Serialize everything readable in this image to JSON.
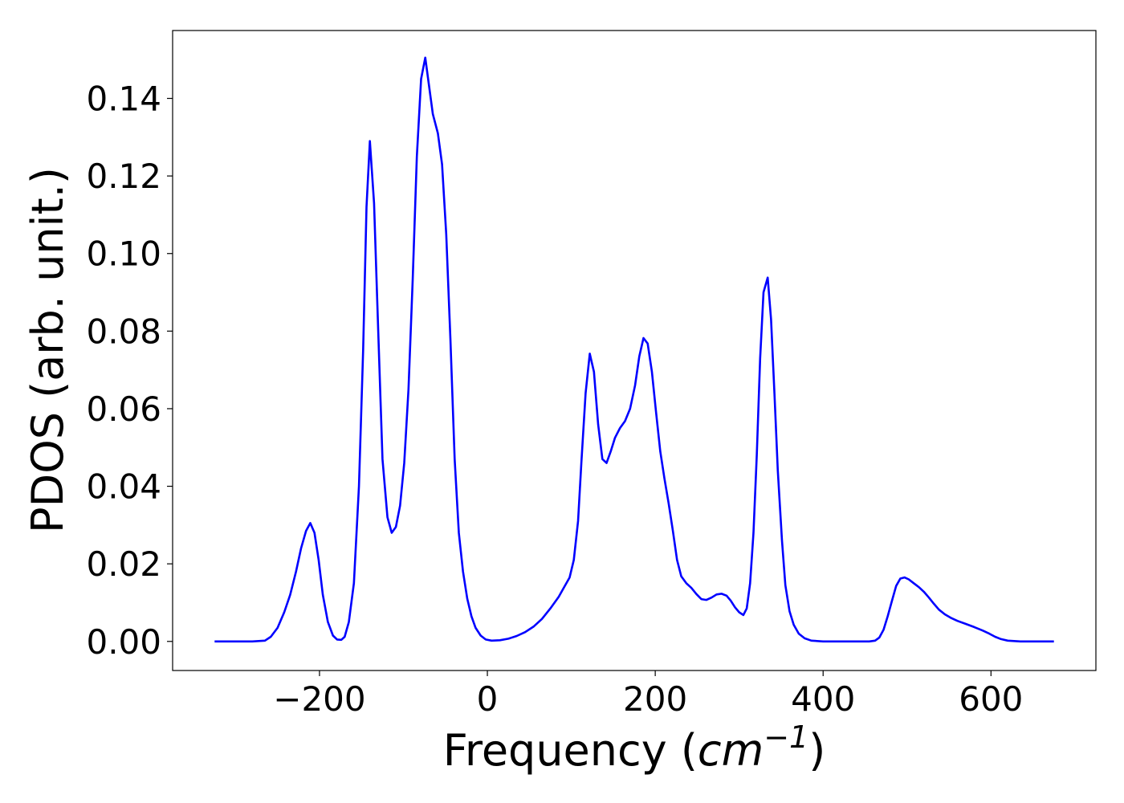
{
  "chart_data": {
    "type": "line",
    "title": "",
    "xlabel": "Frequency",
    "xlabel_unit_open": " (",
    "xlabel_unit": "cm",
    "xlabel_unit_exponent": "−1",
    "xlabel_unit_close": ")",
    "ylabel": "PDOS (arb. unit.)",
    "xlim": [
      -375,
      725
    ],
    "ylim": [
      -0.0075,
      0.1575
    ],
    "xticks": [
      {
        "value": -200,
        "label": "−200"
      },
      {
        "value": 0,
        "label": "0"
      },
      {
        "value": 200,
        "label": "200"
      },
      {
        "value": 400,
        "label": "400"
      },
      {
        "value": 600,
        "label": "600"
      }
    ],
    "yticks": [
      {
        "value": 0.0,
        "label": "0.00"
      },
      {
        "value": 0.02,
        "label": "0.02"
      },
      {
        "value": 0.04,
        "label": "0.04"
      },
      {
        "value": 0.06,
        "label": "0.06"
      },
      {
        "value": 0.08,
        "label": "0.08"
      },
      {
        "value": 0.1,
        "label": "0.10"
      },
      {
        "value": 0.12,
        "label": "0.12"
      },
      {
        "value": 0.14,
        "label": "0.14"
      }
    ],
    "grid": false,
    "legend": "none",
    "series": [
      {
        "color": "#0000ff",
        "points": [
          [
            -325,
            0.0
          ],
          [
            -300,
            0.0
          ],
          [
            -280,
            0.0
          ],
          [
            -265,
            0.0002
          ],
          [
            -258,
            0.0012
          ],
          [
            -250,
            0.0035
          ],
          [
            -242,
            0.0075
          ],
          [
            -235,
            0.012
          ],
          [
            -228,
            0.018
          ],
          [
            -222,
            0.024
          ],
          [
            -216,
            0.0285
          ],
          [
            -211,
            0.0305
          ],
          [
            -206,
            0.028
          ],
          [
            -201,
            0.021
          ],
          [
            -196,
            0.012
          ],
          [
            -190,
            0.005
          ],
          [
            -184,
            0.0015
          ],
          [
            -179,
            0.0005
          ],
          [
            -174,
            0.0004
          ],
          [
            -170,
            0.0012
          ],
          [
            -165,
            0.005
          ],
          [
            -159,
            0.015
          ],
          [
            -153,
            0.04
          ],
          [
            -148,
            0.075
          ],
          [
            -144,
            0.112
          ],
          [
            -140,
            0.129
          ],
          [
            -135,
            0.113
          ],
          [
            -130,
            0.08
          ],
          [
            -125,
            0.047
          ],
          [
            -119,
            0.032
          ],
          [
            -114,
            0.028
          ],
          [
            -109,
            0.0295
          ],
          [
            -104,
            0.035
          ],
          [
            -99,
            0.046
          ],
          [
            -94,
            0.065
          ],
          [
            -89,
            0.093
          ],
          [
            -84,
            0.125
          ],
          [
            -79,
            0.145
          ],
          [
            -74,
            0.1505
          ],
          [
            -70,
            0.144
          ],
          [
            -65,
            0.136
          ],
          [
            -59,
            0.131
          ],
          [
            -54,
            0.123
          ],
          [
            -49,
            0.105
          ],
          [
            -44,
            0.078
          ],
          [
            -39,
            0.047
          ],
          [
            -34,
            0.028
          ],
          [
            -29,
            0.018
          ],
          [
            -24,
            0.011
          ],
          [
            -19,
            0.0065
          ],
          [
            -14,
            0.0035
          ],
          [
            -8,
            0.0015
          ],
          [
            -2,
            0.0005
          ],
          [
            5,
            0.0002
          ],
          [
            15,
            0.0003
          ],
          [
            25,
            0.0007
          ],
          [
            35,
            0.0014
          ],
          [
            45,
            0.0024
          ],
          [
            55,
            0.0038
          ],
          [
            65,
            0.0058
          ],
          [
            75,
            0.0085
          ],
          [
            85,
            0.0115
          ],
          [
            92,
            0.0142
          ],
          [
            98,
            0.0165
          ],
          [
            103,
            0.021
          ],
          [
            108,
            0.031
          ],
          [
            112,
            0.046
          ],
          [
            117,
            0.064
          ],
          [
            122,
            0.0742
          ],
          [
            127,
            0.0695
          ],
          [
            132,
            0.056
          ],
          [
            137,
            0.047
          ],
          [
            142,
            0.046
          ],
          [
            147,
            0.049
          ],
          [
            152,
            0.0525
          ],
          [
            158,
            0.055
          ],
          [
            164,
            0.0568
          ],
          [
            170,
            0.06
          ],
          [
            176,
            0.066
          ],
          [
            181,
            0.0735
          ],
          [
            186,
            0.0782
          ],
          [
            191,
            0.0768
          ],
          [
            196,
            0.0695
          ],
          [
            201,
            0.059
          ],
          [
            206,
            0.049
          ],
          [
            211,
            0.042
          ],
          [
            216,
            0.0355
          ],
          [
            221,
            0.0285
          ],
          [
            226,
            0.021
          ],
          [
            231,
            0.0168
          ],
          [
            237,
            0.015
          ],
          [
            243,
            0.0138
          ],
          [
            249,
            0.0122
          ],
          [
            255,
            0.0109
          ],
          [
            261,
            0.0107
          ],
          [
            267,
            0.0113
          ],
          [
            273,
            0.0121
          ],
          [
            279,
            0.0123
          ],
          [
            285,
            0.0118
          ],
          [
            290,
            0.0105
          ],
          [
            295,
            0.0088
          ],
          [
            300,
            0.0075
          ],
          [
            305,
            0.0068
          ],
          [
            309,
            0.0085
          ],
          [
            313,
            0.015
          ],
          [
            317,
            0.028
          ],
          [
            321,
            0.048
          ],
          [
            325,
            0.073
          ],
          [
            329,
            0.09
          ],
          [
            334,
            0.0938
          ],
          [
            338,
            0.083
          ],
          [
            342,
            0.064
          ],
          [
            346,
            0.044
          ],
          [
            351,
            0.026
          ],
          [
            355,
            0.0145
          ],
          [
            360,
            0.0078
          ],
          [
            365,
            0.0043
          ],
          [
            371,
            0.002
          ],
          [
            378,
            0.0008
          ],
          [
            386,
            0.0002
          ],
          [
            400,
            0.0
          ],
          [
            430,
            0.0
          ],
          [
            455,
            0.0
          ],
          [
            462,
            0.0002
          ],
          [
            467,
            0.001
          ],
          [
            472,
            0.003
          ],
          [
            477,
            0.0065
          ],
          [
            482,
            0.0105
          ],
          [
            487,
            0.0143
          ],
          [
            492,
            0.0162
          ],
          [
            497,
            0.0165
          ],
          [
            502,
            0.016
          ],
          [
            508,
            0.015
          ],
          [
            514,
            0.014
          ],
          [
            520,
            0.0128
          ],
          [
            526,
            0.0113
          ],
          [
            532,
            0.0097
          ],
          [
            538,
            0.0082
          ],
          [
            545,
            0.007
          ],
          [
            552,
            0.0061
          ],
          [
            560,
            0.0053
          ],
          [
            570,
            0.0045
          ],
          [
            580,
            0.0037
          ],
          [
            590,
            0.0028
          ],
          [
            598,
            0.002
          ],
          [
            605,
            0.0012
          ],
          [
            612,
            0.0006
          ],
          [
            620,
            0.0002
          ],
          [
            635,
            0.0
          ],
          [
            675,
            0.0
          ]
        ]
      }
    ]
  }
}
